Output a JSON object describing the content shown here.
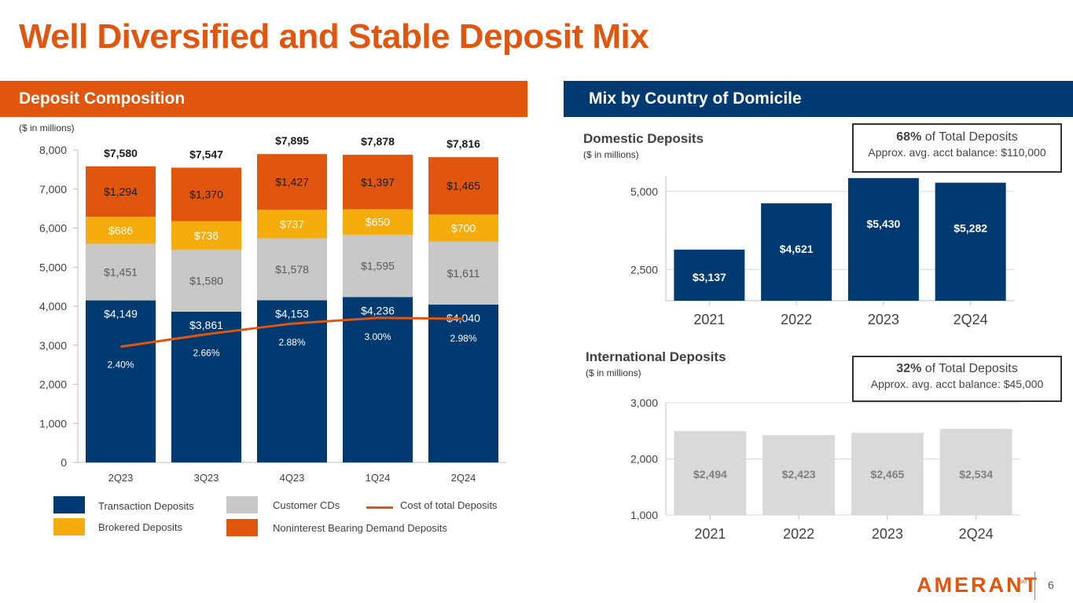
{
  "title": "Well Diversified and Stable Deposit Mix",
  "left_banner": "Deposit Composition",
  "right_banner": "Mix by Country of Domicile",
  "left_units": "($ in millions)",
  "domestic": {
    "heading": "Domestic Deposits",
    "units": "($ in millions)",
    "callout_pct": "68%",
    "callout_text": " of Total Deposits",
    "callout_line2": "Approx. avg. acct balance: $110,000"
  },
  "international": {
    "heading": "International Deposits",
    "units": "($ in millions)",
    "callout_pct": "32%",
    "callout_text": " of Total Deposits",
    "callout_line2": "Approx. avg. acct balance: $45,000"
  },
  "legend": {
    "transaction": "Transaction Deposits",
    "cds": "Customer CDs",
    "cost": "Cost of total Deposits",
    "brokered": "Brokered Deposits",
    "nib": "Noninterest Bearing Demand Deposits"
  },
  "colors": {
    "orange": "#e0560f",
    "navy": "#003a70",
    "gold": "#f4ad0c",
    "gray": "#c8c8c8",
    "text": "#404040"
  },
  "logo": "AMERANT",
  "logo_mark": "SM",
  "page_number": "6",
  "chart_data": [
    {
      "type": "bar",
      "stacked": true,
      "categories": [
        "2Q23",
        "3Q23",
        "4Q23",
        "1Q24",
        "2Q24"
      ],
      "series": [
        {
          "name": "Transaction Deposits",
          "key": "navy",
          "values": [
            4149,
            3861,
            4153,
            4236,
            4040
          ],
          "labels": [
            "$4,149",
            "$3,861",
            "$4,153",
            "$4,236",
            "$4,040"
          ]
        },
        {
          "name": "Customer CDs",
          "key": "gray",
          "values": [
            1451,
            1580,
            1578,
            1595,
            1611
          ],
          "labels": [
            "$1,451",
            "$1,580",
            "$1,578",
            "$1,595",
            "$1,611"
          ]
        },
        {
          "name": "Brokered Deposits",
          "key": "gold",
          "values": [
            686,
            736,
            737,
            650,
            700
          ],
          "labels": [
            "$686",
            "$736",
            "$737",
            "$650",
            "$700"
          ]
        },
        {
          "name": "Noninterest Bearing Demand Deposits",
          "key": "orange",
          "values": [
            1294,
            1370,
            1427,
            1397,
            1465
          ],
          "labels": [
            "$1,294",
            "$1,370",
            "$1,427",
            "$1,397",
            "$1,465"
          ]
        }
      ],
      "totals": [
        "$7,580",
        "$7,547",
        "$7,895",
        "$7,878",
        "$7,816"
      ],
      "line": {
        "name": "Cost of total Deposits",
        "values": [
          2.4,
          2.66,
          2.88,
          3.0,
          2.98
        ],
        "labels": [
          "2.40%",
          "2.66%",
          "2.88%",
          "3.00%",
          "2.98%"
        ]
      },
      "ylim": [
        0,
        8000
      ],
      "yticks": [
        "0",
        "1,000",
        "2,000",
        "3,000",
        "4,000",
        "5,000",
        "6,000",
        "7,000",
        "8,000"
      ],
      "ylabel": "($ in millions)"
    },
    {
      "type": "bar",
      "title": "Domestic Deposits",
      "categories": [
        "2021",
        "2022",
        "2023",
        "2Q24"
      ],
      "values": [
        3137,
        4621,
        5430,
        5282
      ],
      "labels": [
        "$3,137",
        "$4,621",
        "$5,430",
        "$5,282"
      ],
      "ylim": [
        1500,
        5500
      ],
      "yticks": [
        "2,500",
        "5,000"
      ]
    },
    {
      "type": "bar",
      "title": "International Deposits",
      "categories": [
        "2021",
        "2022",
        "2023",
        "2Q24"
      ],
      "values": [
        2494,
        2423,
        2465,
        2534
      ],
      "labels": [
        "$2,494",
        "$2,423",
        "$2,465",
        "$2,534"
      ],
      "ylim": [
        1000,
        3000
      ],
      "yticks": [
        "1,000",
        "2,000",
        "3,000"
      ]
    }
  ]
}
